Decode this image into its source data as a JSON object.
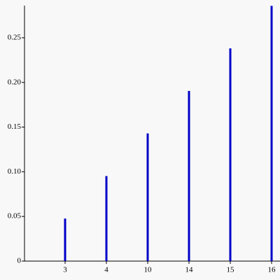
{
  "chart_data": {
    "type": "bar",
    "categories": [
      "3",
      "4",
      "10",
      "14",
      "15",
      "16"
    ],
    "values": [
      0.0476,
      0.0952,
      0.1429,
      0.1905,
      0.2381,
      0.2857
    ],
    "color": "#0000c8",
    "ylim": [
      0,
      0.286
    ],
    "yticks": [
      0,
      0.05,
      {
        "value": 0.1,
        "label": "0.10"
      },
      0.15,
      {
        "value": 0.2,
        "label": "0.20"
      },
      0.25
    ]
  }
}
